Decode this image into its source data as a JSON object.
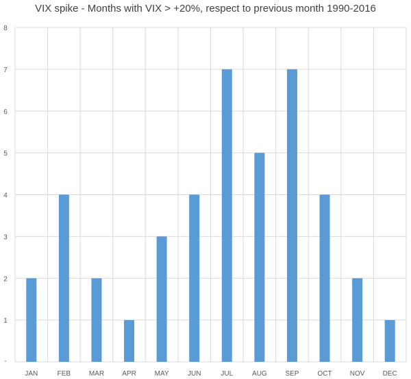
{
  "chart_data": {
    "type": "bar",
    "title": "VIX spike - Months with VIX > +20%, respect to previous month 1990-2016",
    "categories": [
      "JAN",
      "FEB",
      "MAR",
      "APR",
      "MAY",
      "JUN",
      "JUL",
      "AUG",
      "SEP",
      "OCT",
      "NOV",
      "DEC"
    ],
    "values": [
      2,
      4,
      2,
      1,
      3,
      4,
      7,
      5,
      7,
      4,
      2,
      1
    ],
    "ylim": [
      0,
      8
    ],
    "yticks": [
      1,
      2,
      3,
      4,
      5,
      6,
      7,
      8
    ],
    "zero_tick_label": "-",
    "xlabel": "",
    "ylabel": "",
    "grid": true,
    "legend": "none",
    "colors": {
      "bar": "#5B9BD5",
      "grid": "#D9D9D9",
      "text": "#595959",
      "title": "#404040"
    }
  }
}
